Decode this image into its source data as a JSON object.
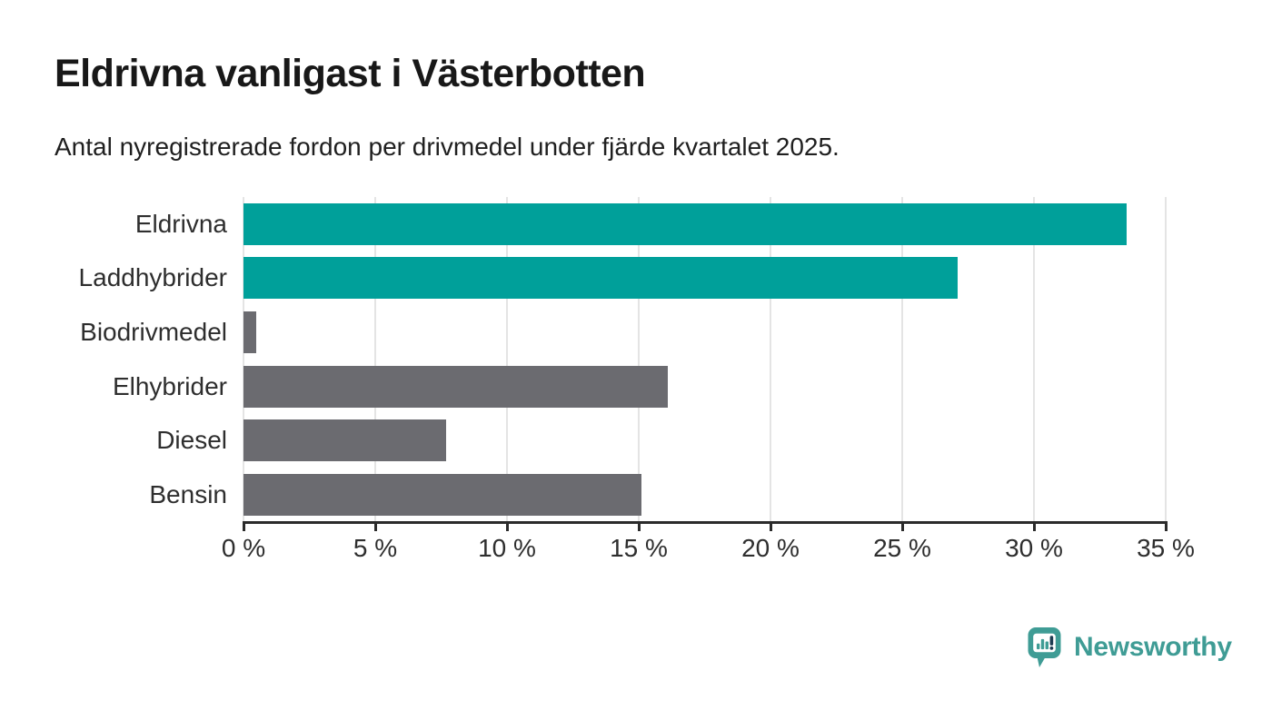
{
  "page": {
    "background": "#ffffff"
  },
  "header": {
    "title": "Eldrivna vanligast i Västerbotten",
    "subtitle": "Antal nyregistrerade fordon per drivmedel under fjärde kvartalet 2025."
  },
  "chart_data": {
    "type": "bar",
    "orientation": "horizontal",
    "title": "Eldrivna vanligast i Västerbotten",
    "subtitle": "Antal nyregistrerade fordon per drivmedel under fjärde kvartalet 2025.",
    "categories": [
      "Eldrivna",
      "Laddhybrider",
      "Biodrivmedel",
      "Elhybrider",
      "Diesel",
      "Bensin"
    ],
    "values": [
      33.5,
      27.1,
      0.5,
      16.1,
      7.7,
      15.1
    ],
    "unit": "%",
    "bar_colors": [
      "#00a09a",
      "#00a09a",
      "#6b6b70",
      "#6b6b70",
      "#6b6b70",
      "#6b6b70"
    ],
    "xlim": [
      0,
      35
    ],
    "x_ticks": [
      0,
      5,
      10,
      15,
      20,
      25,
      30,
      35
    ],
    "x_tick_labels": [
      "0 %",
      "5 %",
      "10 %",
      "15 %",
      "20 %",
      "25 %",
      "30 %",
      "35 %"
    ],
    "grid": "vertical",
    "legend": "none",
    "style": {
      "teal": "#00a09a",
      "gray": "#6b6b70",
      "gridline_color": "#e4e4e4",
      "axis_color": "#2b2b2b",
      "label_color": "#2e2e2e"
    }
  },
  "footer": {
    "brand": "Newsworthy",
    "brand_color": "#3f9c95",
    "logo_icon": "newsworthy-pin-barchart-icon"
  }
}
